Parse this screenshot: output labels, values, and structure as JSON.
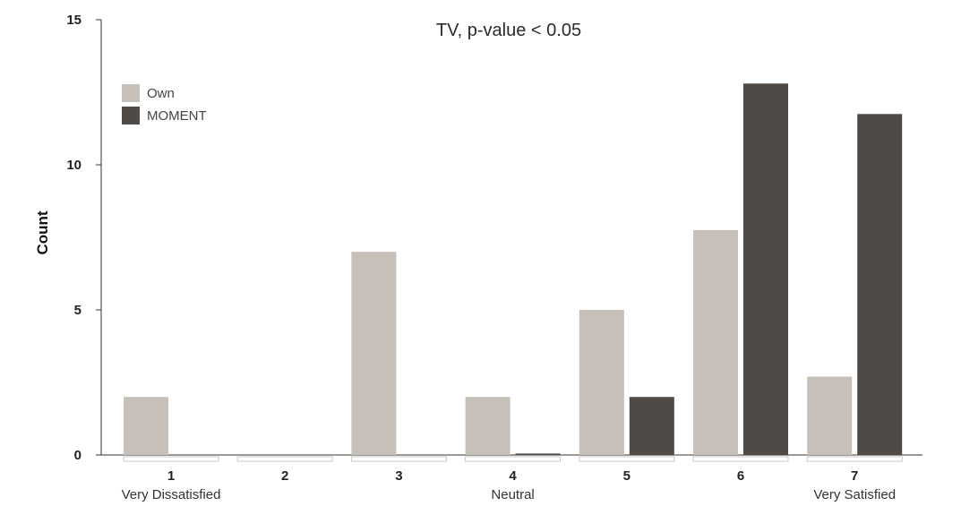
{
  "chart_data": {
    "type": "bar",
    "title": "TV, p-value < 0.05",
    "ylabel": "Count",
    "xlabel": "",
    "ylim": [
      0,
      15
    ],
    "yticks": [
      0,
      5,
      10,
      15
    ],
    "categories": [
      "1",
      "2",
      "3",
      "4",
      "5",
      "6",
      "7"
    ],
    "category_sublabels": [
      "Very Dissatisfied",
      "",
      "",
      "Neutral",
      "",
      "",
      "Very Satisfied"
    ],
    "series": [
      {
        "name": "Own",
        "color": "#c6c0b9",
        "values": [
          2,
          0,
          7,
          2,
          5,
          7.75,
          2.7
        ]
      },
      {
        "name": "MOMENT",
        "color": "#4f4a46",
        "values": [
          0,
          0,
          0,
          0.05,
          2,
          12.8,
          11.75
        ]
      }
    ],
    "legend_position": "top-left",
    "grid": false
  }
}
